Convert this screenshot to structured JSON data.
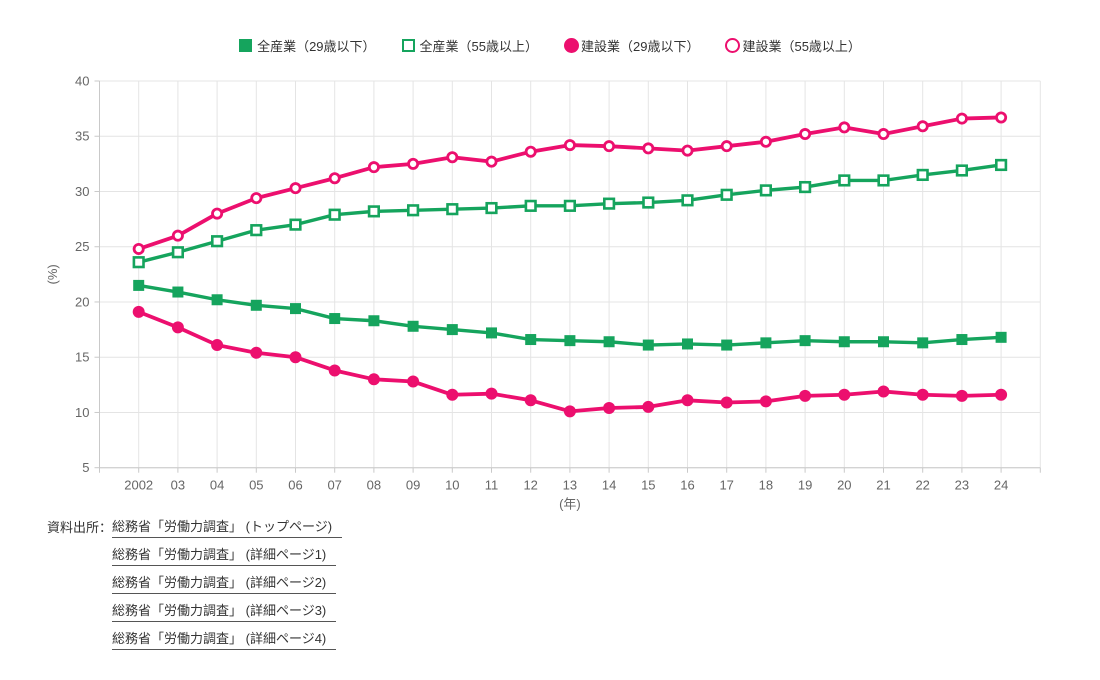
{
  "page": {
    "background": "#ffffff"
  },
  "chart_data": {
    "type": "line",
    "title": "",
    "xlabel": "(年)",
    "ylabel": "(%)",
    "ylim": [
      5,
      40
    ],
    "y_ticks": [
      5,
      10,
      15,
      20,
      25,
      30,
      35,
      40
    ],
    "grid": true,
    "legend_position": "top-center",
    "x_categories": [
      "2002",
      "03",
      "04",
      "05",
      "06",
      "07",
      "08",
      "09",
      "10",
      "11",
      "12",
      "13",
      "14",
      "15",
      "16",
      "17",
      "18",
      "19",
      "20",
      "21",
      "22",
      "23",
      "24"
    ],
    "colors": {
      "green": "#15A45D",
      "pink": "#EC0F6E",
      "grid": "#e4e4e4",
      "axis": "#c9c9c9",
      "tick_label": "#666666"
    },
    "series": [
      {
        "name": "全産業（29歳以下）",
        "marker": "square-filled",
        "color": "#15A45D",
        "values": [
          21.5,
          20.9,
          20.2,
          19.7,
          19.4,
          18.5,
          18.3,
          17.8,
          17.5,
          17.2,
          16.6,
          16.5,
          16.4,
          16.1,
          16.2,
          16.1,
          16.3,
          16.5,
          16.4,
          16.4,
          16.3,
          16.6,
          16.8
        ]
      },
      {
        "name": "全産業（55歳以上）",
        "marker": "square-open",
        "color": "#15A45D",
        "values": [
          23.6,
          24.5,
          25.5,
          26.5,
          27.0,
          27.9,
          28.2,
          28.3,
          28.4,
          28.5,
          28.7,
          28.7,
          28.9,
          29.0,
          29.2,
          29.7,
          30.1,
          30.4,
          31.0,
          31.0,
          31.5,
          31.9,
          32.4
        ]
      },
      {
        "name": "建設業（29歳以下）",
        "marker": "circle-filled",
        "color": "#EC0F6E",
        "values": [
          19.1,
          17.7,
          16.1,
          15.4,
          15.0,
          13.8,
          13.0,
          12.8,
          11.6,
          11.7,
          11.1,
          10.1,
          10.4,
          10.5,
          11.1,
          10.9,
          11.0,
          11.5,
          11.6,
          11.9,
          11.6,
          11.5,
          11.6
        ]
      },
      {
        "name": "建設業（55歳以上）",
        "marker": "circle-open",
        "color": "#EC0F6E",
        "values": [
          24.8,
          26.0,
          28.0,
          29.4,
          30.3,
          31.2,
          32.2,
          32.5,
          33.1,
          32.7,
          33.6,
          34.2,
          34.1,
          33.9,
          33.7,
          34.1,
          34.5,
          35.2,
          35.8,
          35.2,
          35.9,
          36.6,
          36.7
        ]
      }
    ]
  },
  "sources": {
    "label": "資料出所：",
    "links": [
      "総務省「労働力調査」 (トップページ)",
      "総務省「労働力調査」 (詳細ページ1)",
      "総務省「労働力調査」 (詳細ページ2)",
      "総務省「労働力調査」 (詳細ページ3)",
      "総務省「労働力調査」 (詳細ページ4)"
    ]
  }
}
